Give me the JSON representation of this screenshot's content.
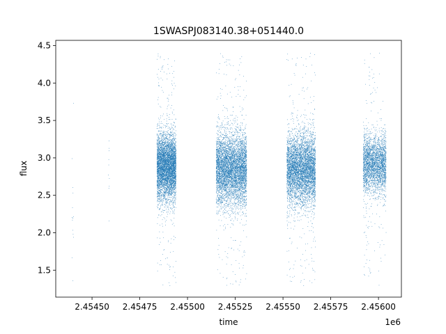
{
  "chart_data": {
    "type": "scatter",
    "title": "1SWASPJ083140.38+051440.0",
    "xlabel": "time",
    "ylabel": "flux",
    "x_offset_label": "1e6",
    "xlim": [
      2.45431,
      2.45612
    ],
    "ylim": [
      1.14,
      4.57
    ],
    "x_ticks": [
      2.4545,
      2.45475,
      2.455,
      2.45525,
      2.4555,
      2.45575,
      2.456
    ],
    "x_tick_labels": [
      "2.45450",
      "2.45475",
      "2.45500",
      "2.45525",
      "2.45550",
      "2.45575",
      "2.45600"
    ],
    "y_ticks": [
      1.5,
      2.0,
      2.5,
      3.0,
      3.5,
      4.0,
      4.5
    ],
    "y_tick_labels": [
      "1.5",
      "2.0",
      "2.5",
      "3.0",
      "3.5",
      "4.0",
      "4.5"
    ],
    "grid": false,
    "marker_color": "#1f77b4",
    "clusters": [
      {
        "x_range": [
          2.454395,
          2.454403
        ],
        "n": 14,
        "center": 2.3,
        "sd": 0.45
      },
      {
        "x_range": [
          2.454585,
          2.454592
        ],
        "n": 10,
        "center": 2.8,
        "sd": 0.35
      },
      {
        "x_range": [
          2.45484,
          2.45494
        ],
        "n": 5200,
        "center": 2.88,
        "sd": 0.22
      },
      {
        "x_range": [
          2.45515,
          2.45531
        ],
        "n": 5600,
        "center": 2.85,
        "sd": 0.24
      },
      {
        "x_range": [
          2.45552,
          2.45567
        ],
        "n": 5200,
        "center": 2.85,
        "sd": 0.24
      },
      {
        "x_range": [
          2.45592,
          2.45604
        ],
        "n": 3000,
        "center": 2.92,
        "sd": 0.2
      }
    ]
  }
}
